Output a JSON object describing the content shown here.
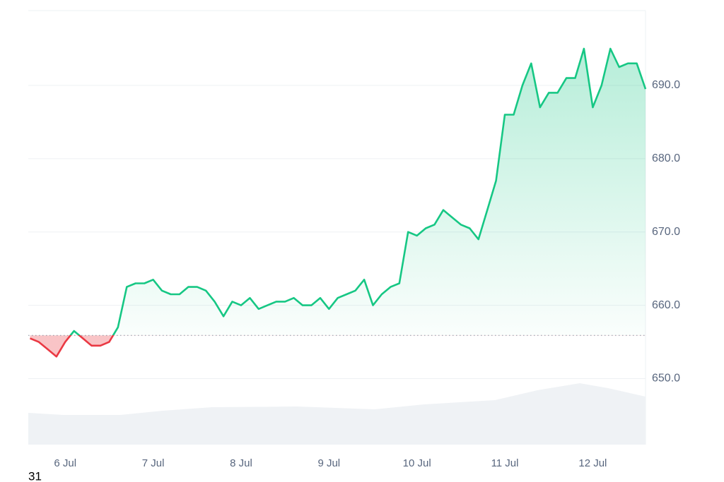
{
  "chart_data": {
    "type": "line",
    "x": [
      5.6,
      5.7,
      5.8,
      5.9,
      6.0,
      6.1,
      6.2,
      6.3,
      6.4,
      6.5,
      6.6,
      6.7,
      6.8,
      6.9,
      7.0,
      7.1,
      7.2,
      7.3,
      7.4,
      7.5,
      7.6,
      7.7,
      7.8,
      7.9,
      8.0,
      8.1,
      8.2,
      8.3,
      8.4,
      8.5,
      8.6,
      8.7,
      8.8,
      8.9,
      9.0,
      9.1,
      9.2,
      9.3,
      9.4,
      9.5,
      9.6,
      9.7,
      9.8,
      9.9,
      10.0,
      10.1,
      10.2,
      10.3,
      10.4,
      10.5,
      10.6,
      10.7,
      10.8,
      10.9,
      11.0,
      11.1,
      11.2,
      11.3,
      11.4,
      11.5,
      11.6,
      11.7,
      11.8,
      11.9,
      12.0,
      12.1,
      12.2,
      12.3,
      12.4,
      12.5,
      12.6
    ],
    "series": [
      {
        "color": "#16c784",
        "below_color": "#ea3943",
        "values": [
          655.5,
          655,
          654,
          653,
          655,
          656.5,
          655.5,
          654.5,
          654.5,
          655,
          657,
          662.5,
          663,
          663,
          663.5,
          662,
          661.5,
          661.5,
          662.5,
          662.5,
          662,
          660.5,
          658.5,
          660.5,
          660,
          661,
          659.5,
          660,
          660.5,
          660.5,
          661,
          660,
          660,
          661,
          659.5,
          661,
          661.5,
          662,
          663.5,
          660,
          661.5,
          662.5,
          663,
          670,
          669.5,
          670.5,
          671,
          673,
          672,
          671,
          670.5,
          669,
          673,
          677,
          686,
          686,
          690,
          693,
          687,
          689,
          689,
          691,
          691,
          695,
          687,
          690,
          695,
          692.5,
          693,
          693,
          689.5
        ]
      }
    ],
    "baseline": 655.9,
    "xlim": [
      5.58,
      12.6
    ],
    "xticks": [
      {
        "value": 6,
        "label": "6 Jul"
      },
      {
        "value": 7,
        "label": "7 Jul"
      },
      {
        "value": 8,
        "label": "8 Jul"
      },
      {
        "value": 9,
        "label": "9 Jul"
      },
      {
        "value": 10,
        "label": "10 Jul"
      },
      {
        "value": 11,
        "label": "11 Jul"
      },
      {
        "value": 12,
        "label": "12 Jul"
      }
    ],
    "ylim": [
      641,
      700.2
    ],
    "yticks": [
      {
        "value": 650,
        "label": "650.0"
      },
      {
        "value": 660,
        "label": "660.0"
      },
      {
        "value": 670,
        "label": "670.0"
      },
      {
        "value": 680,
        "label": "680.0"
      },
      {
        "value": 690,
        "label": "690.0"
      }
    ],
    "grid": true
  },
  "footer_label": "31"
}
